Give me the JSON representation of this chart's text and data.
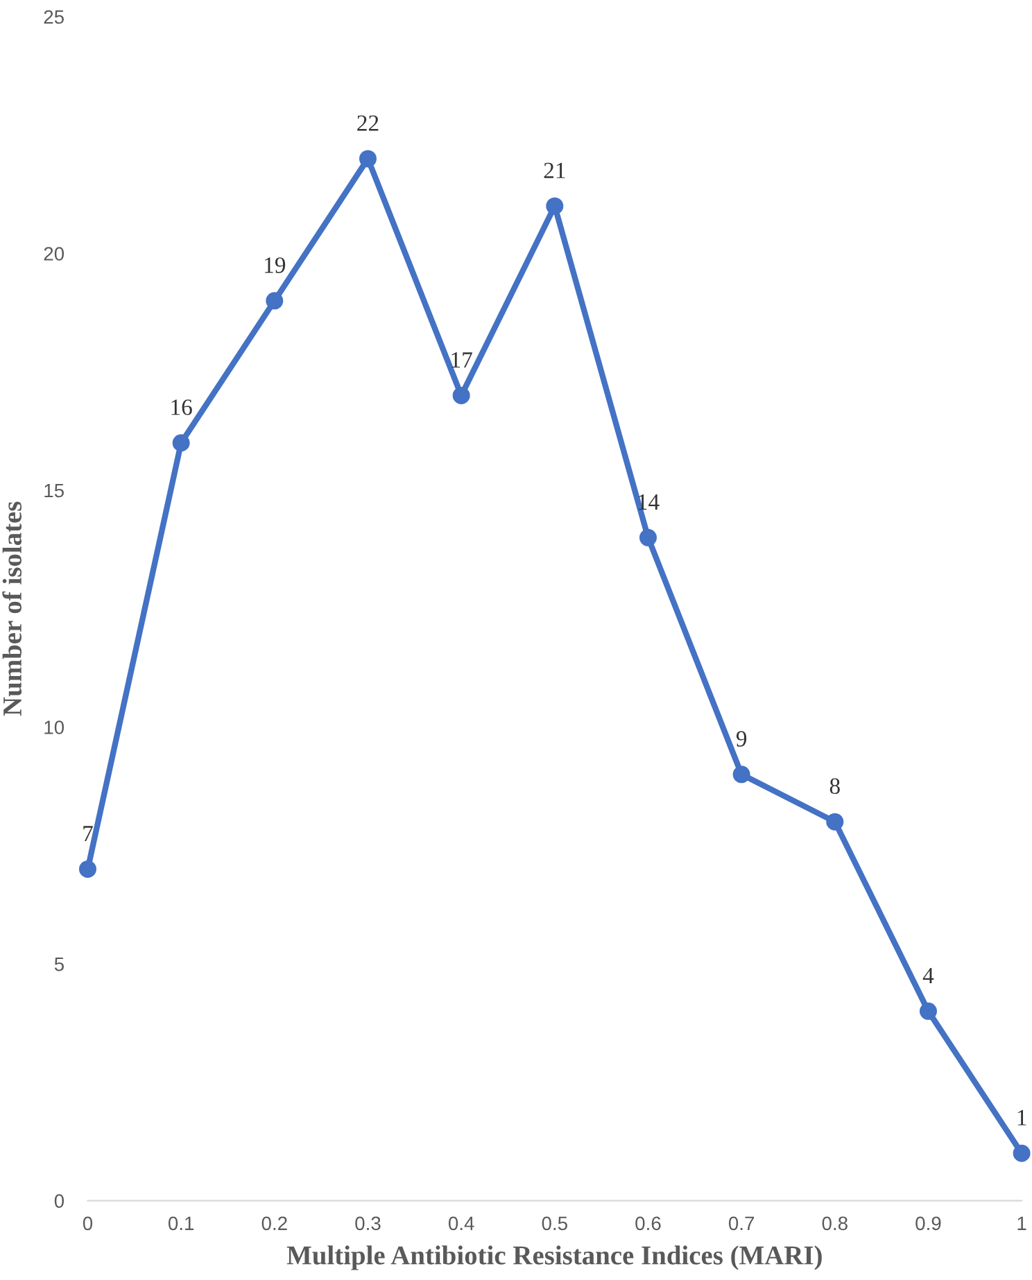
{
  "chart_data": {
    "type": "line",
    "xlabel": "Multiple Antibiotic Resistance Indices (MARI)",
    "ylabel": "Number of isolates",
    "x": [
      0,
      0.1,
      0.2,
      0.3,
      0.4,
      0.5,
      0.6,
      0.7,
      0.8,
      0.9,
      1
    ],
    "series": [
      {
        "color": "#4472c4",
        "values": [
          7,
          16,
          19,
          22,
          17,
          21,
          14,
          9,
          8,
          4,
          1
        ]
      }
    ],
    "xlim": [
      0,
      1
    ],
    "xticks": [
      0,
      0.1,
      0.2,
      0.3,
      0.4,
      0.5,
      0.6,
      0.7,
      0.8,
      0.9,
      1
    ],
    "ylim": [
      0,
      25
    ],
    "yticks": [
      0,
      5,
      10,
      15,
      20,
      25
    ],
    "grid": false,
    "legend": false,
    "marker": "circle",
    "line_style": "solid",
    "data_labels": true
  }
}
